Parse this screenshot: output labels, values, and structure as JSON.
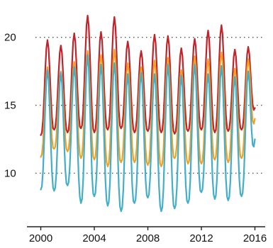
{
  "chart_data": {
    "type": "line",
    "xlim": [
      2000,
      2016.3
    ],
    "ylim": [
      7,
      21.6
    ],
    "grid": "horizontal dotted",
    "legend": "none",
    "x_ticks": [
      {
        "value": 2000,
        "label": "2000"
      },
      {
        "value": 2004,
        "label": "2004"
      },
      {
        "value": 2008,
        "label": "2008"
      },
      {
        "value": 2012,
        "label": "2012"
      },
      {
        "value": 2016,
        "label": "2016"
      }
    ],
    "y_ticks": [
      {
        "value": 10,
        "label": "10"
      },
      {
        "value": 15,
        "label": "15"
      },
      {
        "value": 20,
        "label": "20"
      }
    ],
    "months_per_year": 12,
    "series": [
      {
        "color": "#c0232a",
        "start": 2000.0,
        "yearly": [
          {
            "year": 2000,
            "min": 12.8,
            "max": 19.8
          },
          {
            "year": 2001,
            "min": 13.2,
            "max": 19.4
          },
          {
            "year": 2002,
            "min": 13.0,
            "max": 20.3
          },
          {
            "year": 2003,
            "min": 13.3,
            "max": 21.6
          },
          {
            "year": 2004,
            "min": 13.0,
            "max": 20.4
          },
          {
            "year": 2005,
            "min": 13.2,
            "max": 21.5
          },
          {
            "year": 2006,
            "min": 13.3,
            "max": 19.7
          },
          {
            "year": 2007,
            "min": 13.0,
            "max": 19.0
          },
          {
            "year": 2008,
            "min": 13.1,
            "max": 20.2
          },
          {
            "year": 2009,
            "min": 13.0,
            "max": 20.1
          },
          {
            "year": 2010,
            "min": 12.9,
            "max": 19.2
          },
          {
            "year": 2011,
            "min": 13.1,
            "max": 19.9
          },
          {
            "year": 2012,
            "min": 13.2,
            "max": 20.5
          },
          {
            "year": 2013,
            "min": 13.0,
            "max": 20.9
          },
          {
            "year": 2014,
            "min": 13.1,
            "max": 19.1
          },
          {
            "year": 2015,
            "min": 13.2,
            "max": 19.3
          }
        ],
        "end_value": 14.8
      },
      {
        "color": "#f0a023",
        "start": 2000.0,
        "yearly": [
          {
            "year": 2000,
            "min": 11.2,
            "max": 17.8
          },
          {
            "year": 2001,
            "min": 11.8,
            "max": 17.5
          },
          {
            "year": 2002,
            "min": 11.6,
            "max": 18.2
          },
          {
            "year": 2003,
            "min": 11.1,
            "max": 19.0
          },
          {
            "year": 2004,
            "min": 11.0,
            "max": 18.7
          },
          {
            "year": 2005,
            "min": 10.5,
            "max": 19.1
          },
          {
            "year": 2006,
            "min": 10.8,
            "max": 18.1
          },
          {
            "year": 2007,
            "min": 10.8,
            "max": 17.8
          },
          {
            "year": 2008,
            "min": 10.6,
            "max": 18.3
          },
          {
            "year": 2009,
            "min": 10.5,
            "max": 18.5
          },
          {
            "year": 2010,
            "min": 11.1,
            "max": 17.6
          },
          {
            "year": 2011,
            "min": 10.7,
            "max": 18.6
          },
          {
            "year": 2012,
            "min": 10.7,
            "max": 18.4
          },
          {
            "year": 2013,
            "min": 11.0,
            "max": 18.9
          },
          {
            "year": 2014,
            "min": 10.8,
            "max": 17.7
          },
          {
            "year": 2015,
            "min": 11.1,
            "max": 18.4
          }
        ],
        "end_value": 14.0
      },
      {
        "color": "#43aec9",
        "start": 2000.0,
        "yearly": [
          {
            "year": 2000,
            "min": 8.8,
            "max": 17.6
          },
          {
            "year": 2001,
            "min": 8.7,
            "max": 17.4
          },
          {
            "year": 2002,
            "min": 9.1,
            "max": 17.8
          },
          {
            "year": 2003,
            "min": 7.8,
            "max": 18.7
          },
          {
            "year": 2004,
            "min": 8.3,
            "max": 18.0
          },
          {
            "year": 2005,
            "min": 7.6,
            "max": 18.1
          },
          {
            "year": 2006,
            "min": 7.2,
            "max": 17.3
          },
          {
            "year": 2007,
            "min": 7.8,
            "max": 17.4
          },
          {
            "year": 2008,
            "min": 8.2,
            "max": 17.3
          },
          {
            "year": 2009,
            "min": 7.2,
            "max": 18.0
          },
          {
            "year": 2010,
            "min": 7.4,
            "max": 17.2
          },
          {
            "year": 2011,
            "min": 7.8,
            "max": 18.0
          },
          {
            "year": 2012,
            "min": 8.6,
            "max": 17.3
          },
          {
            "year": 2013,
            "min": 8.1,
            "max": 17.9
          },
          {
            "year": 2014,
            "min": 8.0,
            "max": 17.1
          },
          {
            "year": 2015,
            "min": 8.3,
            "max": 17.5
          }
        ],
        "end_value": 12.5
      }
    ]
  }
}
